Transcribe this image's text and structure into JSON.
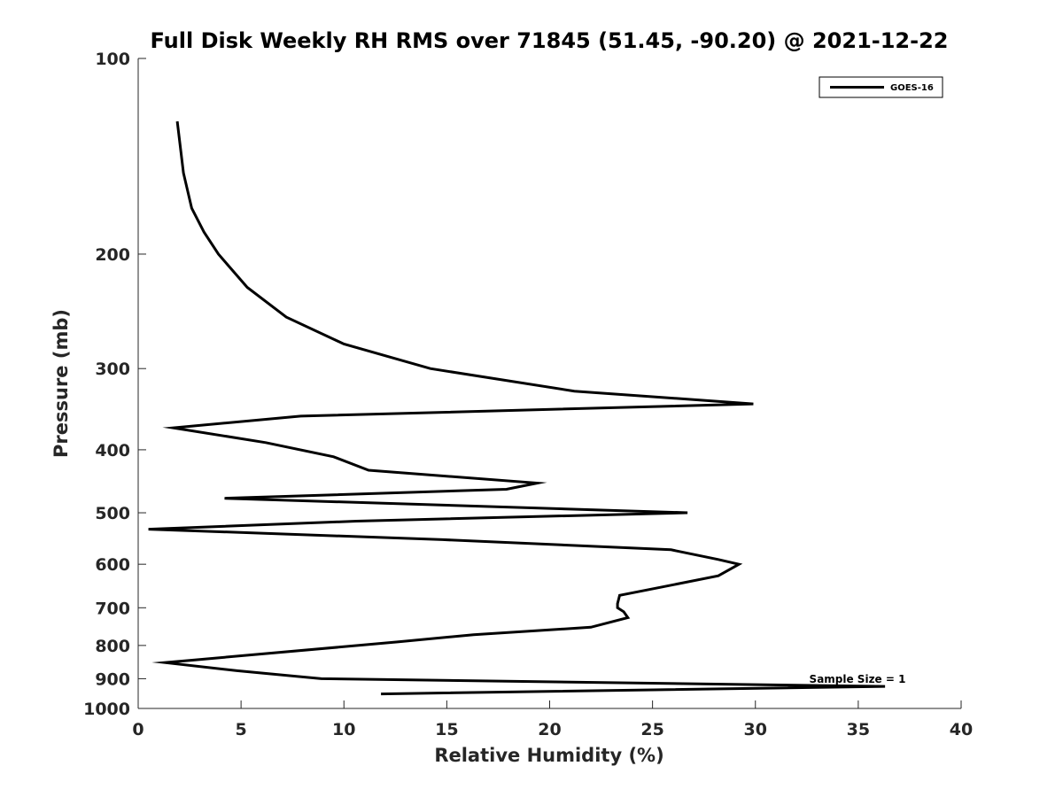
{
  "chart_data": {
    "type": "line",
    "title": "Full Disk Weekly RH RMS over 71845 (51.45, -90.20) @ 2021-12-22",
    "xlabel": "Relative Humidity (%)",
    "ylabel": "Pressure (mb)",
    "xlim": [
      0,
      40
    ],
    "ylim": [
      1000,
      100
    ],
    "y_scale": "log",
    "x_ticks": [
      0,
      5,
      10,
      15,
      20,
      25,
      30,
      35,
      40
    ],
    "y_ticks": [
      100,
      200,
      300,
      400,
      500,
      600,
      700,
      800,
      900,
      1000
    ],
    "grid": false,
    "legend": {
      "position": "top-right",
      "entries": [
        "GOES-16"
      ]
    },
    "annotation": "Sample Size = 1",
    "series": [
      {
        "name": "GOES-16",
        "color": "#000000",
        "points": [
          [
            1.9,
            125
          ],
          [
            2.2,
            150
          ],
          [
            2.6,
            170
          ],
          [
            3.2,
            185
          ],
          [
            3.9,
            200
          ],
          [
            5.3,
            225
          ],
          [
            7.2,
            250
          ],
          [
            10.0,
            275
          ],
          [
            14.2,
            300
          ],
          [
            21.2,
            325
          ],
          [
            29.9,
            340
          ],
          [
            7.9,
            355
          ],
          [
            1.7,
            370
          ],
          [
            6.2,
            390
          ],
          [
            9.5,
            410
          ],
          [
            11.2,
            430
          ],
          [
            19.4,
            450
          ],
          [
            17.9,
            460
          ],
          [
            4.2,
            475
          ],
          [
            26.7,
            500
          ],
          [
            10.6,
            515
          ],
          [
            0.5,
            530
          ],
          [
            14.8,
            550
          ],
          [
            25.9,
            570
          ],
          [
            28.2,
            590
          ],
          [
            29.2,
            600
          ],
          [
            28.2,
            625
          ],
          [
            25.5,
            650
          ],
          [
            23.4,
            670
          ],
          [
            23.3,
            690
          ],
          [
            23.3,
            700
          ],
          [
            23.6,
            710
          ],
          [
            23.8,
            725
          ],
          [
            22.0,
            750
          ],
          [
            16.3,
            770
          ],
          [
            12.6,
            790
          ],
          [
            1.3,
            850
          ],
          [
            4.8,
            875
          ],
          [
            8.9,
            900
          ],
          [
            36.3,
            925
          ],
          [
            11.8,
            950
          ]
        ]
      }
    ]
  }
}
